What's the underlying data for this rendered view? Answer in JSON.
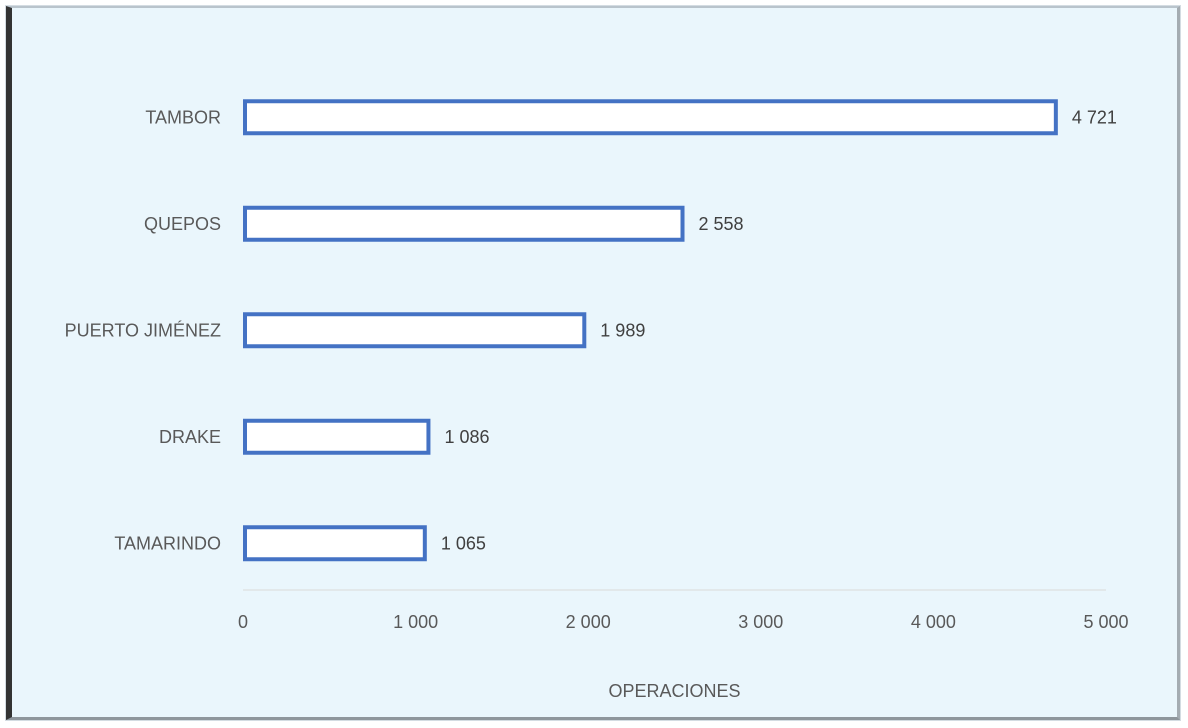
{
  "chart_data": {
    "type": "bar",
    "orientation": "horizontal",
    "categories": [
      "TAMBOR",
      "QUEPOS",
      "PUERTO JIMÉNEZ",
      "DRAKE",
      "TAMARINDO"
    ],
    "values": [
      4721,
      2558,
      1989,
      1086,
      1065
    ],
    "value_labels": [
      "4 721",
      "2 558",
      "1 989",
      "1 086",
      "1 065"
    ],
    "title": "",
    "xlabel": "OPERACIONES",
    "ylabel": "",
    "xlim": [
      0,
      5000
    ],
    "x_ticks": [
      0,
      1000,
      2000,
      3000,
      4000,
      5000
    ],
    "x_tick_labels": [
      "0",
      "1 000",
      "2 000",
      "3 000",
      "4 000",
      "5 000"
    ],
    "grid": false,
    "legend": "none",
    "colors": {
      "bar_outline": "#4472c4",
      "bar_fill": "#ffffff",
      "plot_background": "#eaf6fc"
    }
  }
}
